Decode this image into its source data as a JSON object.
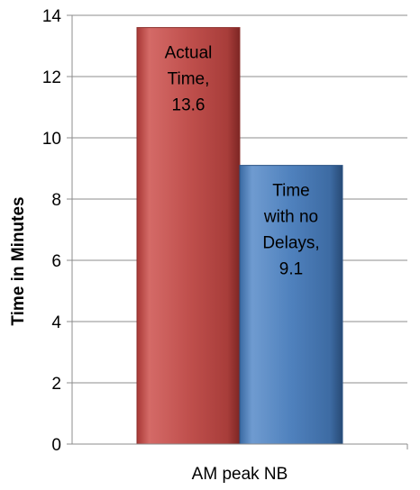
{
  "chart_data": {
    "type": "bar",
    "categories": [
      "AM peak NB"
    ],
    "series": [
      {
        "name": "Actual Time",
        "values": [
          13.6
        ],
        "color": "#c0504d",
        "label_lines": [
          "Actual",
          "Time,",
          "13.6"
        ]
      },
      {
        "name": "Time with no Delays",
        "values": [
          9.1
        ],
        "color": "#4f81bd",
        "label_lines": [
          "Time",
          "with no",
          "Delays,",
          "9.1"
        ]
      }
    ],
    "ylabel": "Time in Minutes",
    "ylim": [
      0,
      14
    ],
    "yticks": [
      0,
      2,
      4,
      6,
      8,
      10,
      12,
      14
    ],
    "grid": true,
    "legend": "none"
  }
}
